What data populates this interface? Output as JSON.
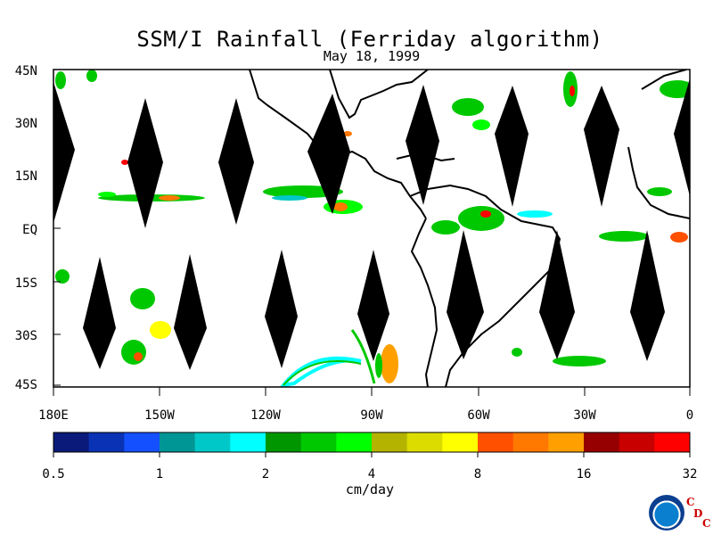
{
  "title": "SSM/I Rainfall (Ferriday algorithm)",
  "subtitle": "May 18, 1999",
  "lat_labels": [
    "45N",
    "30N",
    "15N",
    "EQ",
    "15S",
    "30S",
    "45S"
  ],
  "lon_labels": [
    "180E",
    "150W",
    "120W",
    "90W",
    "60W",
    "30W",
    "0"
  ],
  "colorbar": {
    "unit_label": "cm/day",
    "tick_labels": [
      "0.5",
      "1",
      "2",
      "4",
      "8",
      "16",
      "32"
    ],
    "colors": [
      "#0a1a7a",
      "#0a32b4",
      "#1450ff",
      "#009696",
      "#00c8c8",
      "#00ffff",
      "#009600",
      "#00c800",
      "#00ff00",
      "#b4b400",
      "#dcdc00",
      "#ffff00",
      "#ff5000",
      "#ff7800",
      "#ffa000",
      "#960000",
      "#c80000",
      "#ff0000"
    ]
  },
  "logo": {
    "letters": [
      "C",
      "D",
      "C"
    ]
  },
  "icons": {
    "agency_logo": "noaa-logo-icon"
  }
}
